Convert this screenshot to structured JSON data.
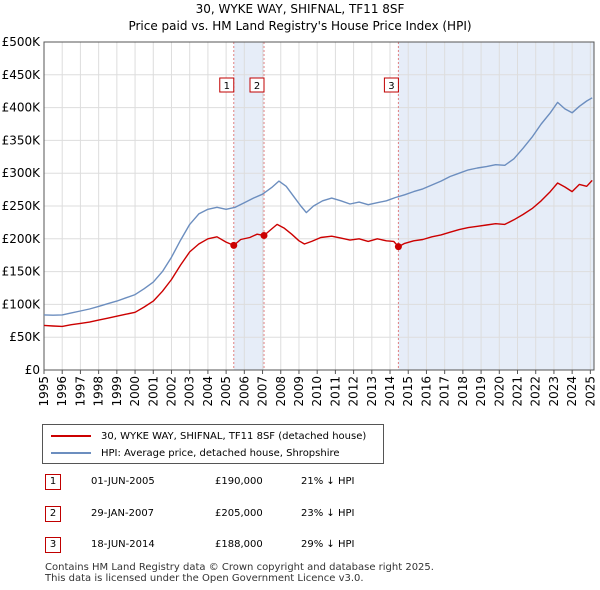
{
  "chart_data": {
    "type": "line",
    "title": "30, WYKE WAY, SHIFNAL, TF11 8SF",
    "subtitle": "Price paid vs. HM Land Registry's House Price Index (HPI)",
    "xlabel": "",
    "ylabel": "",
    "xlim": [
      1995,
      2025.2
    ],
    "ylim": [
      0,
      500000
    ],
    "x_ticks": [
      "1995",
      "1996",
      "1997",
      "1998",
      "1999",
      "2000",
      "2001",
      "2002",
      "2003",
      "2004",
      "2005",
      "2006",
      "2007",
      "2008",
      "2009",
      "2010",
      "2011",
      "2012",
      "2013",
      "2014",
      "2015",
      "2016",
      "2017",
      "2018",
      "2019",
      "2020",
      "2021",
      "2022",
      "2023",
      "2024",
      "2025"
    ],
    "y_ticks": [
      {
        "value": 0,
        "label": "£0"
      },
      {
        "value": 50000,
        "label": "£50K"
      },
      {
        "value": 100000,
        "label": "£100K"
      },
      {
        "value": 150000,
        "label": "£150K"
      },
      {
        "value": 200000,
        "label": "£200K"
      },
      {
        "value": 250000,
        "label": "£250K"
      },
      {
        "value": 300000,
        "label": "£300K"
      },
      {
        "value": 350000,
        "label": "£350K"
      },
      {
        "value": 400000,
        "label": "£400K"
      },
      {
        "value": 450000,
        "label": "£450K"
      },
      {
        "value": 500000,
        "label": "£500K"
      }
    ],
    "series": [
      {
        "name": "30, WYKE WAY, SHIFNAL, TF11 8SF (detached house)",
        "color": "#cc0000",
        "x": [
          1995.0,
          1995.5,
          1996.0,
          1996.5,
          1997.0,
          1997.5,
          1998.0,
          1998.5,
          1999.0,
          1999.5,
          2000.0,
          2000.5,
          2001.0,
          2001.5,
          2002.0,
          2002.5,
          2003.0,
          2003.5,
          2004.0,
          2004.5,
          2005.0,
          2005.42,
          2005.8,
          2006.3,
          2006.7,
          2007.08,
          2007.5,
          2007.8,
          2008.2,
          2008.6,
          2009.0,
          2009.3,
          2009.7,
          2010.2,
          2010.8,
          2011.3,
          2011.8,
          2012.3,
          2012.8,
          2013.3,
          2013.8,
          2014.2,
          2014.46,
          2014.8,
          2015.3,
          2015.8,
          2016.3,
          2016.8,
          2017.3,
          2017.8,
          2018.3,
          2018.8,
          2019.3,
          2019.8,
          2020.3,
          2020.8,
          2021.3,
          2021.8,
          2022.3,
          2022.8,
          2023.2,
          2023.6,
          2024.0,
          2024.4,
          2024.8,
          2025.1
        ],
        "values": [
          68000,
          67000,
          66500,
          69000,
          71000,
          73000,
          76000,
          79000,
          82000,
          85000,
          88000,
          96000,
          105000,
          120000,
          138000,
          160000,
          180000,
          192000,
          200000,
          203000,
          195000,
          190000,
          199000,
          202000,
          207000,
          205000,
          215000,
          222000,
          216000,
          207000,
          197000,
          192000,
          196000,
          202000,
          204000,
          201000,
          198000,
          200000,
          196000,
          200000,
          197000,
          196000,
          188000,
          193000,
          197000,
          199000,
          203000,
          206000,
          210000,
          214000,
          217000,
          219000,
          221000,
          223000,
          222000,
          229000,
          237000,
          246000,
          258000,
          272000,
          285000,
          279000,
          272000,
          283000,
          280000,
          289000
        ]
      },
      {
        "name": "HPI: Average price, detached house, Shropshire",
        "color": "#6c8ebf",
        "x": [
          1995.0,
          1995.5,
          1996.0,
          1996.5,
          1997.0,
          1997.5,
          1998.0,
          1998.5,
          1999.0,
          1999.5,
          2000.0,
          2000.5,
          2001.0,
          2001.5,
          2002.0,
          2002.5,
          2003.0,
          2003.5,
          2004.0,
          2004.5,
          2005.0,
          2005.5,
          2006.0,
          2006.5,
          2007.0,
          2007.5,
          2007.9,
          2008.3,
          2008.7,
          2009.1,
          2009.4,
          2009.8,
          2010.3,
          2010.8,
          2011.3,
          2011.8,
          2012.3,
          2012.8,
          2013.3,
          2013.8,
          2014.3,
          2014.8,
          2015.3,
          2015.8,
          2016.3,
          2016.8,
          2017.3,
          2017.8,
          2018.3,
          2018.8,
          2019.3,
          2019.8,
          2020.3,
          2020.8,
          2021.3,
          2021.8,
          2022.3,
          2022.8,
          2023.2,
          2023.6,
          2024.0,
          2024.4,
          2024.8,
          2025.1
        ],
        "values": [
          84000,
          83500,
          84000,
          87000,
          90000,
          93000,
          97000,
          101000,
          105000,
          110000,
          115000,
          124000,
          134000,
          150000,
          172000,
          198000,
          222000,
          238000,
          245000,
          248000,
          245000,
          248000,
          255000,
          262000,
          268000,
          278000,
          288000,
          280000,
          265000,
          250000,
          240000,
          250000,
          258000,
          262000,
          258000,
          253000,
          256000,
          252000,
          255000,
          258000,
          263000,
          267000,
          272000,
          276000,
          282000,
          288000,
          295000,
          300000,
          305000,
          308000,
          310000,
          313000,
          312000,
          322000,
          338000,
          355000,
          375000,
          392000,
          408000,
          398000,
          392000,
          402000,
          410000,
          415000
        ]
      }
    ],
    "annotations": [
      {
        "label": "1",
        "x": 2005.42,
        "value": 190000,
        "date": "01-JUN-2005",
        "price": "£190,000",
        "hpi": "21% ↓ HPI"
      },
      {
        "label": "2",
        "x": 2007.08,
        "value": 205000,
        "date": "29-JAN-2007",
        "price": "£205,000",
        "hpi": "23% ↓ HPI"
      },
      {
        "label": "3",
        "x": 2014.46,
        "value": 188000,
        "date": "18-JUN-2014",
        "price": "£188,000",
        "hpi": "29% ↓ HPI"
      }
    ],
    "shaded_ranges": [
      [
        2005.42,
        2007.08
      ],
      [
        2014.46,
        2025.2
      ]
    ],
    "shade_color": "#e6edf8",
    "grid": true
  },
  "footer": {
    "line1": "Contains HM Land Registry data © Crown copyright and database right 2025.",
    "line2": "This data is licensed under the Open Government Licence v3.0."
  }
}
